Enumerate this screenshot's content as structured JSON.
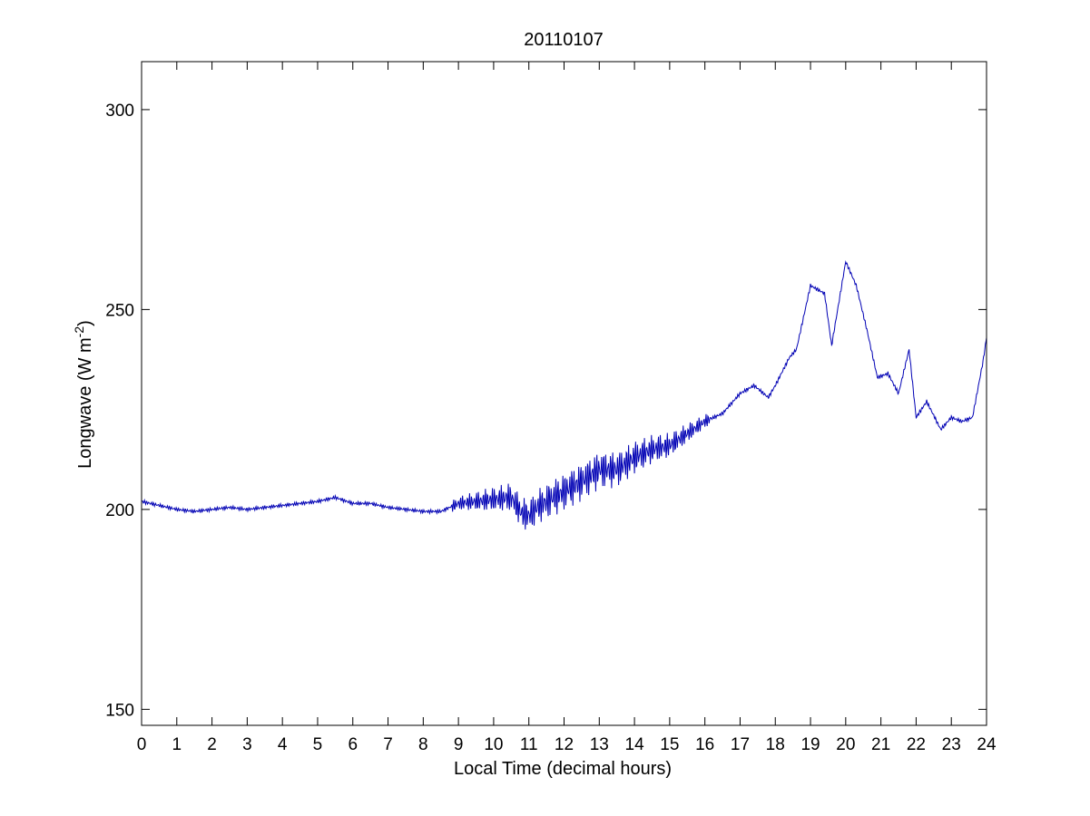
{
  "chart_data": {
    "type": "line",
    "title": "20110107",
    "xlabel": "Local Time (decimal hours)",
    "ylabel": {
      "text": "Longwave (W m",
      "superscript": "-2",
      "suffix": ")"
    },
    "xlim": [
      0,
      24
    ],
    "ylim": [
      146,
      312
    ],
    "xticks": [
      0,
      1,
      2,
      3,
      4,
      5,
      6,
      7,
      8,
      9,
      10,
      11,
      12,
      13,
      14,
      15,
      16,
      17,
      18,
      19,
      20,
      21,
      22,
      23,
      24
    ],
    "yticks": [
      150,
      200,
      250,
      300
    ],
    "grid": false,
    "line_color": "#0000b4",
    "series": [
      {
        "x": [
          0,
          0.5,
          1,
          1.5,
          2,
          2.5,
          3,
          3.5,
          4,
          4.5,
          5,
          5.5,
          6,
          6.5,
          7,
          7.5,
          8,
          8.5,
          9,
          9.5,
          10,
          10.5,
          10.8,
          11,
          11.3,
          11.5,
          12,
          12.5,
          13,
          13.5,
          14,
          14.5,
          15,
          15.5,
          16,
          16.5,
          17,
          17.4,
          17.8,
          18,
          18.4,
          18.6,
          19,
          19.4,
          19.6,
          20,
          20.3,
          20.6,
          20.9,
          21.2,
          21.5,
          21.8,
          22,
          22.3,
          22.7,
          23,
          23.3,
          23.6,
          23.9,
          24
        ],
        "y": [
          202,
          201,
          200,
          199.5,
          200,
          200.5,
          200,
          200.5,
          201,
          201.5,
          202,
          203,
          201.5,
          201.5,
          200.5,
          200,
          199.5,
          199.5,
          201.5,
          202,
          202.5,
          203,
          199,
          198.5,
          201,
          202,
          204.5,
          207,
          210,
          210,
          213,
          215,
          216,
          219,
          222,
          224,
          229,
          231,
          228,
          231,
          238,
          240,
          256,
          254,
          241,
          262,
          256,
          245,
          233,
          234,
          229,
          240,
          223,
          227,
          220,
          223,
          222,
          223,
          237,
          243
        ]
      }
    ]
  }
}
